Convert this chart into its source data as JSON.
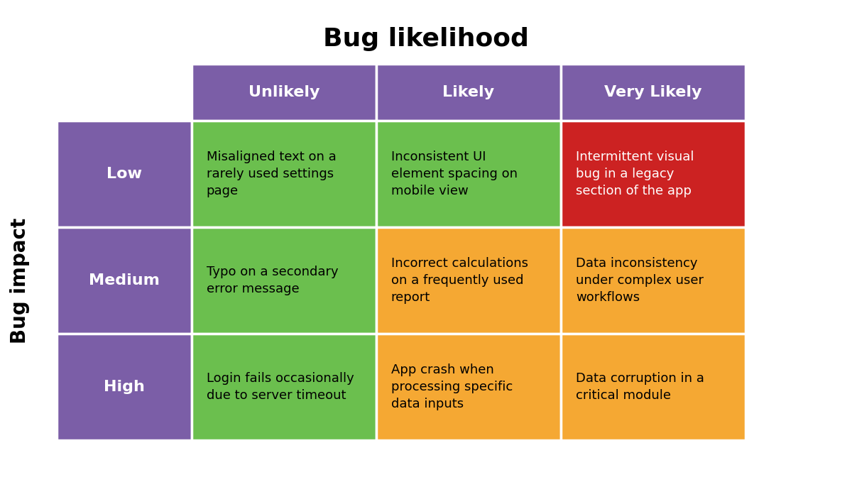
{
  "title": "Bug likelihood",
  "ylabel": "Bug impact",
  "col_headers": [
    "Unlikely",
    "Likely",
    "Very Likely"
  ],
  "row_headers": [
    "Low",
    "Medium",
    "High"
  ],
  "header_bg_color": "#7B5EA7",
  "row_header_bg_color": "#7B5EA7",
  "header_text_color": "#FFFFFF",
  "row_header_text_color": "#FFFFFF",
  "cell_colors": [
    [
      "#6BBF4E",
      "#6BBF4E",
      "#CC2222"
    ],
    [
      "#6BBF4E",
      "#F5A833",
      "#F5A833"
    ],
    [
      "#6BBF4E",
      "#F5A833",
      "#F5A833"
    ]
  ],
  "cell_text_color": "#000000",
  "cell_texts": [
    [
      "Misaligned text on a\nrarely used settings\npage",
      "Inconsistent UI\nelement spacing on\nmobile view",
      "Intermittent visual\nbug in a legacy\nsection of the app"
    ],
    [
      "Typo on a secondary\nerror message",
      "Incorrect calculations\non a frequently used\nreport",
      "Data inconsistency\nunder complex user\nworkflows"
    ],
    [
      "Login fails occasionally\ndue to server timeout",
      "App crash when\nprocessing specific\ndata inputs",
      "Data corruption in a\ncritical module"
    ]
  ],
  "red_cell_text_color": "#FFFFFF",
  "background_color": "#FFFFFF",
  "title_fontsize": 26,
  "ylabel_fontsize": 20,
  "header_fontsize": 16,
  "row_header_fontsize": 16,
  "cell_fontsize": 13,
  "border_color": "#FFFFFF",
  "border_width": 2.5
}
